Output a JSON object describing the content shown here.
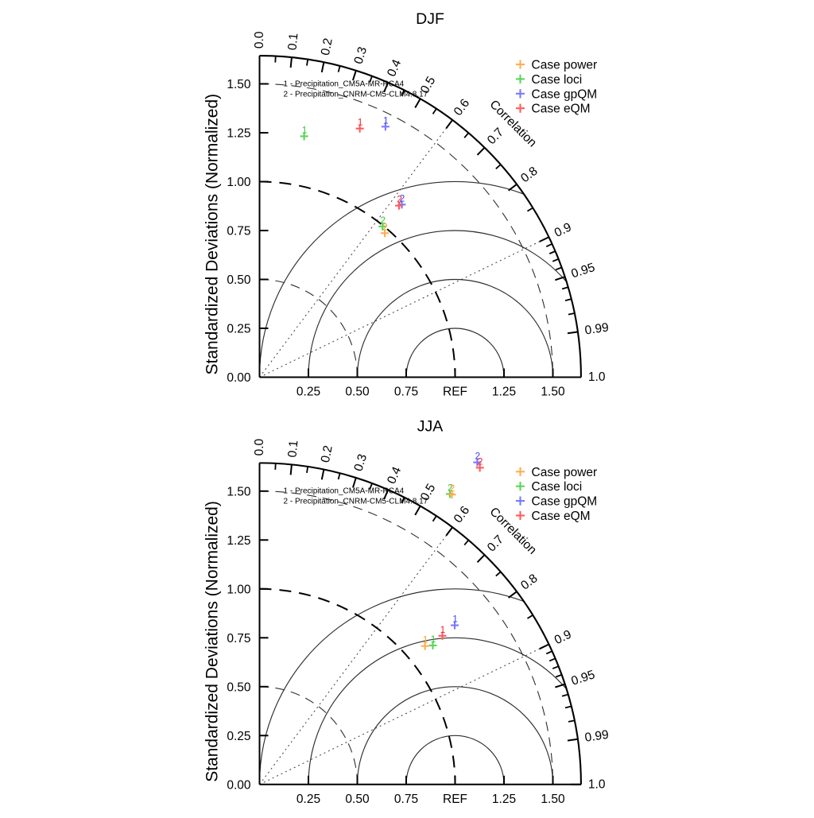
{
  "figure": {
    "background": "#ffffff"
  },
  "chart_data": {
    "type": "taylor",
    "description": "Two normalized Taylor diagrams (seasonal precipitation skill of bias-correction cases)",
    "axes": {
      "ylabel": "Standardized Deviations (Normalized)",
      "corr_axis_label": "Correlation",
      "std_range": [
        0,
        1.644
      ],
      "y_tick_labels": [
        "0.00",
        "0.25",
        "0.50",
        "0.75",
        "1.00",
        "1.25",
        "1.50"
      ],
      "y_tick_values": [
        0,
        0.25,
        0.5,
        0.75,
        1.0,
        1.25,
        1.5
      ],
      "x_tick_labels": [
        "0.25",
        "0.50",
        "0.75",
        "REF",
        "1.25",
        "1.50"
      ],
      "x_tick_values": [
        0.25,
        0.5,
        0.75,
        1.0,
        1.25,
        1.5
      ],
      "corr_major_ticks": [
        {
          "value": 0.0,
          "label": "0.0"
        },
        {
          "value": 0.1,
          "label": "0.1"
        },
        {
          "value": 0.2,
          "label": "0.2"
        },
        {
          "value": 0.3,
          "label": "0.3"
        },
        {
          "value": 0.4,
          "label": "0.4"
        },
        {
          "value": 0.5,
          "label": "0.5"
        },
        {
          "value": 0.6,
          "label": "0.6"
        },
        {
          "value": 0.7,
          "label": "0.7"
        },
        {
          "value": 0.8,
          "label": "0.8"
        },
        {
          "value": 0.9,
          "label": "0.9"
        },
        {
          "value": 0.95,
          "label": "0.95"
        },
        {
          "value": 0.99,
          "label": "0.99"
        },
        {
          "value": 1.0,
          "label": "1.0"
        }
      ],
      "corr_minor_ticks": [
        0.05,
        0.15,
        0.25,
        0.35,
        0.45,
        0.55,
        0.65,
        0.75,
        0.85,
        0.91,
        0.92,
        0.93,
        0.94,
        0.96,
        0.97,
        0.98
      ],
      "dotted_ray_correlations": [
        0.6,
        0.9
      ],
      "std_dashed_circles": [
        {
          "radius": 0.5,
          "bold": false
        },
        {
          "radius": 1.0,
          "bold": true
        },
        {
          "radius": 1.5,
          "bold": false
        }
      ],
      "ref_centered_arc_radii": [
        0.25,
        0.5,
        0.75,
        1.0
      ],
      "grid": "polar-taylor",
      "legend_position": "top-right"
    },
    "cases": [
      {
        "id": "power",
        "legend_label": "Case power",
        "marker": "+",
        "color": "#ffad52",
        "text_color": "#ff9d26"
      },
      {
        "id": "loci",
        "legend_label": "Case loci",
        "marker": "+",
        "color": "#59d659",
        "text_color": "#33c433"
      },
      {
        "id": "gpQM",
        "legend_label": "Case gpQM",
        "marker": "+",
        "color": "#7878ff",
        "text_color": "#4040f0"
      },
      {
        "id": "eQM",
        "legend_label": "Case eQM",
        "marker": "+",
        "color": "#ff5c5c",
        "text_color": "#f02828"
      }
    ],
    "annotations": [
      "1 - Precipitation_CM5A-MR-RCA4",
      "2 - Precipitation_CNRM-CM5-CLM4.8.17"
    ],
    "panels": [
      {
        "title": "DJF",
        "points": [
          {
            "case": "loci",
            "label": "1",
            "std": 1.253,
            "corr": 0.182
          },
          {
            "case": "loci",
            "label": "2",
            "std": 0.995,
            "corr": 0.632
          },
          {
            "case": "power",
            "label": "2",
            "std": 0.976,
            "corr": 0.656
          },
          {
            "case": "gpQM",
            "label": "1",
            "std": 1.434,
            "corr": 0.449
          },
          {
            "case": "gpQM",
            "label": "2",
            "std": 1.144,
            "corr": 0.636
          },
          {
            "case": "eQM",
            "label": "1",
            "std": 1.371,
            "corr": 0.374
          },
          {
            "case": "eQM",
            "label": "2",
            "std": 1.131,
            "corr": 0.631
          }
        ]
      },
      {
        "title": "JJA",
        "points": [
          {
            "case": "loci",
            "label": "1",
            "std": 1.136,
            "corr": 0.78
          },
          {
            "case": "loci",
            "label": "2",
            "std": 1.776,
            "corr": 0.548
          },
          {
            "case": "power",
            "label": "1",
            "std": 1.103,
            "corr": 0.767
          },
          {
            "case": "power",
            "label": "2",
            "std": 1.779,
            "corr": 0.553
          },
          {
            "case": "gpQM",
            "label": "1",
            "std": 1.288,
            "corr": 0.775
          },
          {
            "case": "gpQM",
            "label": "2",
            "std": 1.988,
            "corr": 0.56
          },
          {
            "case": "eQM",
            "label": "1",
            "std": 1.205,
            "corr": 0.776
          },
          {
            "case": "eQM",
            "label": "2",
            "std": 1.973,
            "corr": 0.571
          }
        ]
      }
    ]
  }
}
